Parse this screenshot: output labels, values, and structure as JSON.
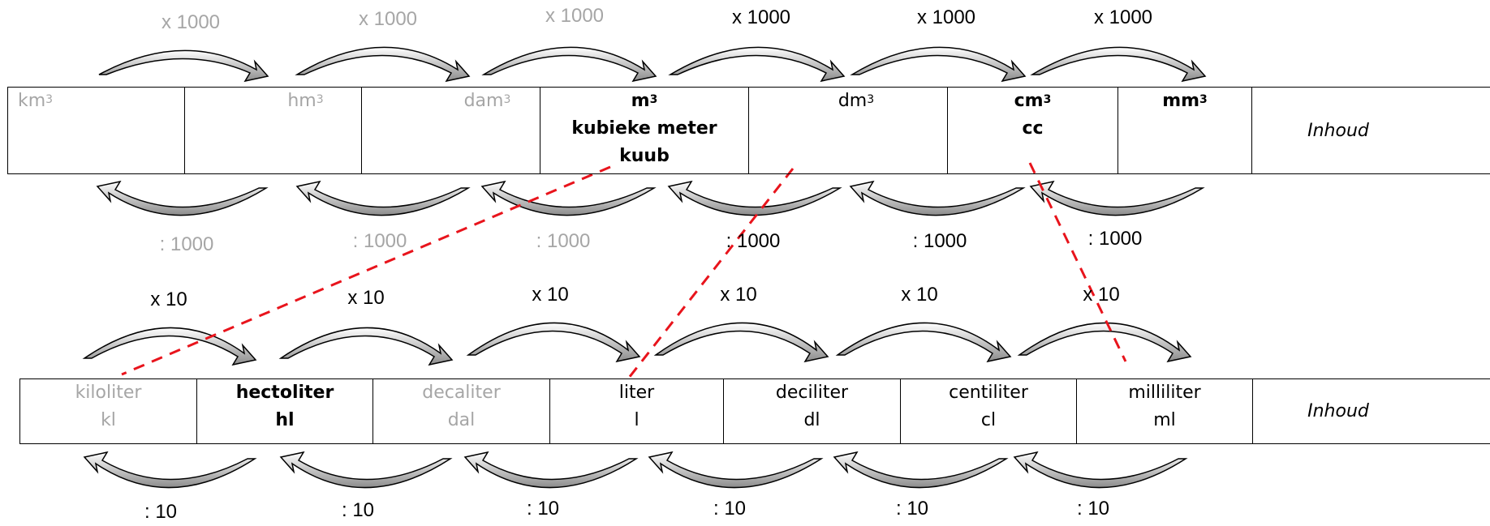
{
  "cubic_row": {
    "multiply_labels": [
      "x 1000",
      "x 1000",
      "x 1000",
      "x 1000",
      "x 1000",
      "x 1000"
    ],
    "divide_labels": [
      ": 1000",
      ": 1000",
      ": 1000",
      ": 1000",
      ": 1000",
      ": 1000"
    ],
    "cells": [
      {
        "base": "km",
        "sup": "3",
        "extra": []
      },
      {
        "base": "hm",
        "sup": "3",
        "extra": []
      },
      {
        "base": "dam",
        "sup": "3",
        "extra": []
      },
      {
        "base": "m",
        "sup": "3",
        "extra": [
          "kubieke meter",
          "kuub"
        ]
      },
      {
        "base": "dm",
        "sup": "3",
        "extra": []
      },
      {
        "base": "cm",
        "sup": "3",
        "extra": [
          "cc"
        ]
      },
      {
        "base": "mm",
        "sup": "3",
        "extra": []
      }
    ],
    "category": "Inhoud"
  },
  "liter_row": {
    "multiply_labels": [
      "x 10",
      "x 10",
      "x 10",
      "x 10",
      "x 10",
      "x 10"
    ],
    "divide_labels": [
      ": 10",
      ": 10",
      ": 10",
      ": 10",
      ": 10",
      ": 10"
    ],
    "cells": [
      {
        "name": "kiloliter",
        "abbr": "kl"
      },
      {
        "name": "hectoliter",
        "abbr": "hl"
      },
      {
        "name": "decaliter",
        "abbr": "dal"
      },
      {
        "name": "liter",
        "abbr": "l"
      },
      {
        "name": "deciliter",
        "abbr": "dl"
      },
      {
        "name": "centiliter",
        "abbr": "cl"
      },
      {
        "name": "milliliter",
        "abbr": "ml"
      }
    ],
    "category": "Inhoud"
  },
  "colors": {
    "faded": "#a6a6a6",
    "active": "#000000",
    "connector": "#e8141c",
    "arrow_fill": "#a6a6a6"
  }
}
